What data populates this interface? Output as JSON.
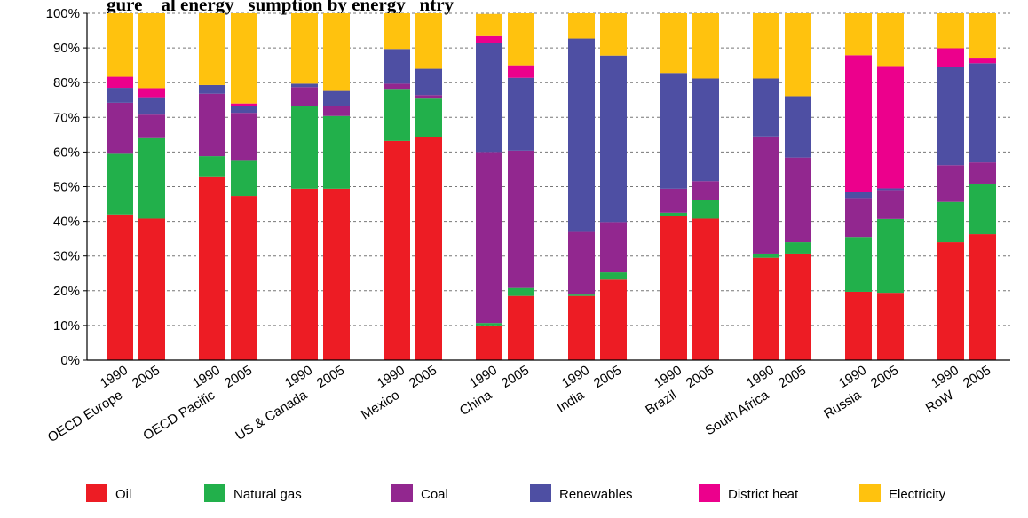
{
  "chart_data": {
    "type": "bar",
    "stacked": true,
    "title": "...gure ... ...al energy ...sumption by energy...type ... ...ntry",
    "title_visible": "gure    al energy   sumption by energy   ntry",
    "xlabel": "",
    "ylabel": "",
    "ylim": [
      0,
      100
    ],
    "yticks": [
      "0%",
      "10%",
      "20%",
      "30%",
      "40%",
      "50%",
      "60%",
      "70%",
      "80%",
      "90%",
      "100%"
    ],
    "grid": true,
    "legend_position": "bottom",
    "groups": [
      {
        "name": "OECD Europe",
        "years": [
          "1990",
          "2005"
        ]
      },
      {
        "name": "OECD Pacific",
        "years": [
          "1990",
          "2005"
        ]
      },
      {
        "name": "US & Canada",
        "years": [
          "1990",
          "2005"
        ]
      },
      {
        "name": "Mexico",
        "years": [
          "1990",
          "2005"
        ]
      },
      {
        "name": "China",
        "years": [
          "1990",
          "2005"
        ]
      },
      {
        "name": "India",
        "years": [
          "1990",
          "2005"
        ]
      },
      {
        "name": "Brazil",
        "years": [
          "1990",
          "2005"
        ]
      },
      {
        "name": "South Africa",
        "years": [
          "1990",
          "2005"
        ]
      },
      {
        "name": "Russia",
        "years": [
          "1990",
          "2005"
        ]
      },
      {
        "name": "RoW",
        "years": [
          "1990",
          "2005"
        ]
      }
    ],
    "series": [
      {
        "name": "Oil",
        "color": "#ed1c24",
        "values": [
          42,
          40.8,
          53,
          47.3,
          49.4,
          49.4,
          63.2,
          64.4,
          10,
          18.5,
          18.5,
          23.2,
          41.5,
          40.8,
          29.5,
          30.7,
          19.7,
          19.4,
          34,
          36.3
        ]
      },
      {
        "name": "Natural gas",
        "color": "#22b04b",
        "values": [
          17.5,
          23.2,
          5.8,
          10.4,
          23.8,
          21,
          15,
          11,
          0.7,
          2.3,
          0.4,
          2.1,
          1,
          5.3,
          1.2,
          3.3,
          15.8,
          21.3,
          11.6,
          14.6
        ]
      },
      {
        "name": "Coal",
        "color": "#92278f",
        "values": [
          14.7,
          6.8,
          18,
          13.6,
          5.5,
          2.8,
          1.5,
          1,
          49.3,
          39.6,
          18.3,
          14.5,
          6.9,
          5.5,
          33.8,
          24.4,
          11.2,
          8.3,
          10.6,
          6.1
        ]
      },
      {
        "name": "Renewables",
        "color": "#4e4fa3",
        "values": [
          4.3,
          5,
          2.5,
          2,
          1,
          4.4,
          10,
          7.6,
          31.4,
          21,
          55.5,
          48,
          33.4,
          29.6,
          16.7,
          17.7,
          1.8,
          0.5,
          28.2,
          28.6
        ]
      },
      {
        "name": "District heat",
        "color": "#ec008c",
        "values": [
          3.2,
          2.6,
          0,
          0.7,
          0,
          0,
          0,
          0,
          2,
          3.6,
          0,
          0,
          0,
          0,
          0,
          0,
          39.4,
          35.3,
          5.5,
          1.6
        ]
      },
      {
        "name": "Electricity",
        "color": "#ffc20e",
        "values": [
          18.3,
          21.6,
          20.7,
          26,
          20.3,
          22.4,
          10.3,
          16,
          6.4,
          15,
          7.3,
          12.2,
          17.2,
          18.8,
          18.8,
          23.9,
          12.1,
          15.2,
          10.1,
          12.8
        ]
      }
    ]
  }
}
